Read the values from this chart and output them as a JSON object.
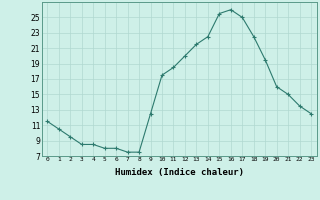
{
  "x": [
    0,
    1,
    2,
    3,
    4,
    5,
    6,
    7,
    8,
    9,
    10,
    11,
    12,
    13,
    14,
    15,
    16,
    17,
    18,
    19,
    20,
    21,
    22,
    23
  ],
  "y": [
    11.5,
    10.5,
    9.5,
    8.5,
    8.5,
    8.0,
    8.0,
    7.5,
    7.5,
    12.5,
    17.5,
    18.5,
    20.0,
    21.5,
    22.5,
    25.5,
    26.0,
    25.0,
    22.5,
    19.5,
    16.0,
    15.0,
    13.5,
    12.5
  ],
  "line_color": "#2d7a6e",
  "marker": "+",
  "bg_color": "#cef0e8",
  "grid_color": "#b0d8d0",
  "xlabel": "Humidex (Indice chaleur)",
  "yticks": [
    7,
    9,
    11,
    13,
    15,
    17,
    19,
    21,
    23,
    25
  ],
  "xticks": [
    0,
    1,
    2,
    3,
    4,
    5,
    6,
    7,
    8,
    9,
    10,
    11,
    12,
    13,
    14,
    15,
    16,
    17,
    18,
    19,
    20,
    21,
    22,
    23
  ],
  "xlim": [
    -0.5,
    23.5
  ],
  "ylim": [
    7,
    27
  ]
}
